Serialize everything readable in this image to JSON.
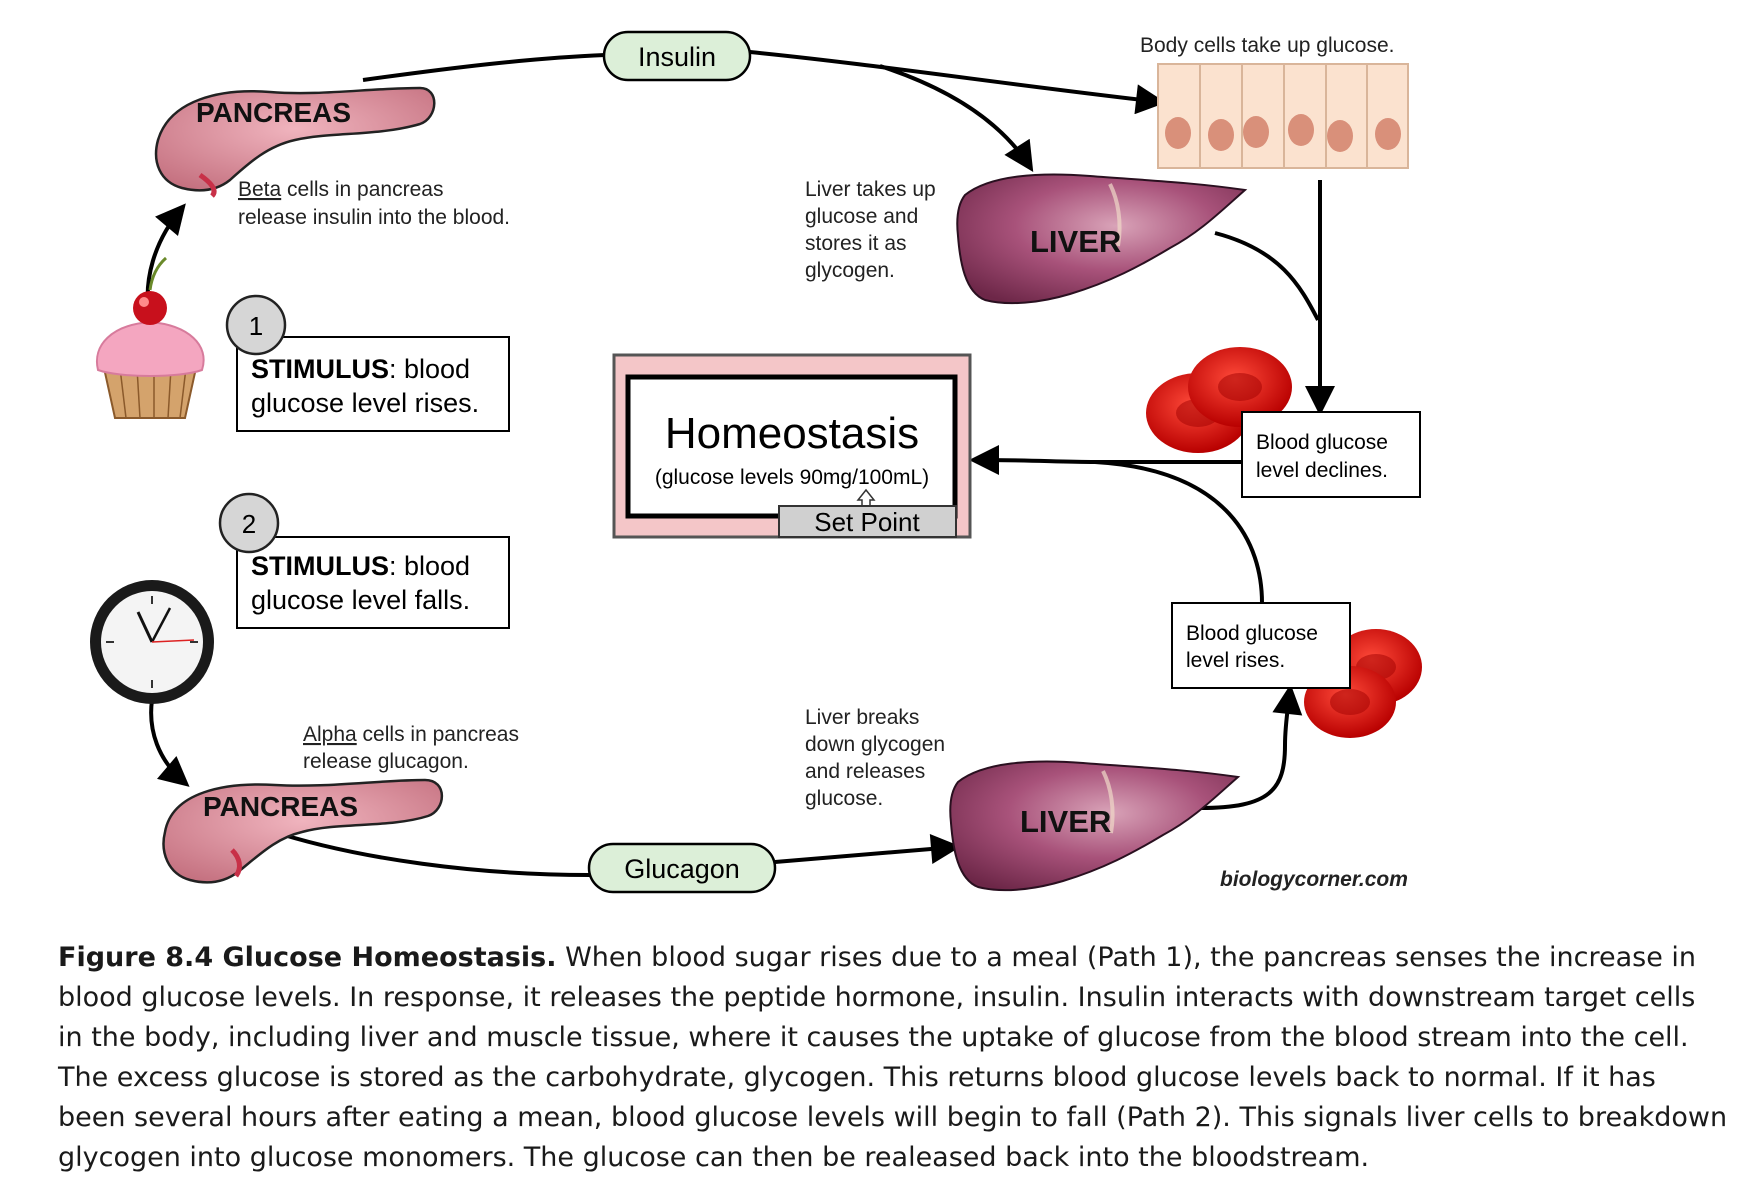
{
  "diagram": {
    "top_hormone": "Insulin",
    "bottom_hormone": "Glucagon",
    "pancreas_label": "PANCREAS",
    "liver_label": "LIVER",
    "body_cells_note": "Body cells take up glucose.",
    "beta_word": "Beta",
    "beta_rest_line1": " cells in pancreas",
    "beta_line2": "release insulin into the blood.",
    "alpha_word": "Alpha",
    "alpha_rest_line1": " cells in pancreas",
    "alpha_line2": "release glucagon.",
    "liver_takes_up": [
      "Liver takes up",
      "glucose and",
      "stores it as",
      "glycogen."
    ],
    "liver_breaks_down": [
      "Liver breaks",
      "down glycogen",
      "and releases",
      "glucose."
    ],
    "stimulus1": {
      "number": "1",
      "title": "STIMULUS",
      "line1_rest": ":  blood",
      "line2": "glucose level rises."
    },
    "stimulus2": {
      "number": "2",
      "title": "STIMULUS",
      "line1_rest": ":  blood",
      "line2": "glucose level falls."
    },
    "homeostasis": {
      "title": "Homeostasis",
      "subtitle": "(glucose levels 90mg/100mL)",
      "set_point": "Set Point"
    },
    "declines": [
      "Blood glucose",
      "level declines."
    ],
    "rises": [
      "Blood glucose",
      "level rises."
    ],
    "credit": "biologycorner.com"
  },
  "caption": {
    "label": "Figure 8.4 Glucose Homeostasis.",
    "text": " When blood sugar rises due to a meal (Path 1), the pancreas senses the increase in blood glucose levels. In response, it releases the peptide hormone, insulin. Insulin interacts with downstream target cells in the body, including liver and muscle tissue, where it causes the uptake of glucose from the blood stream into the cell. The excess glucose is stored as the carbohydrate, glycogen. This returns blood glucose levels back to normal.  If it has been several hours after eating a mean, blood glucose levels will begin to fall (Path 2). This signals liver cells to breakdown glycogen into glucose monomers. The glucose can then be realeased back into the bloodstream."
  },
  "colors": {
    "pancreas": "#d98a9a",
    "liver": "#8e3a5c",
    "hormone_pill": "#dcefd8",
    "homeostasis_frame": "#f4c6c8",
    "set_point_bg": "#d0d0d0",
    "blood_cell": "#d80f0f",
    "body_cell": "#fbe2cf",
    "nucleus": "#d9907a"
  }
}
